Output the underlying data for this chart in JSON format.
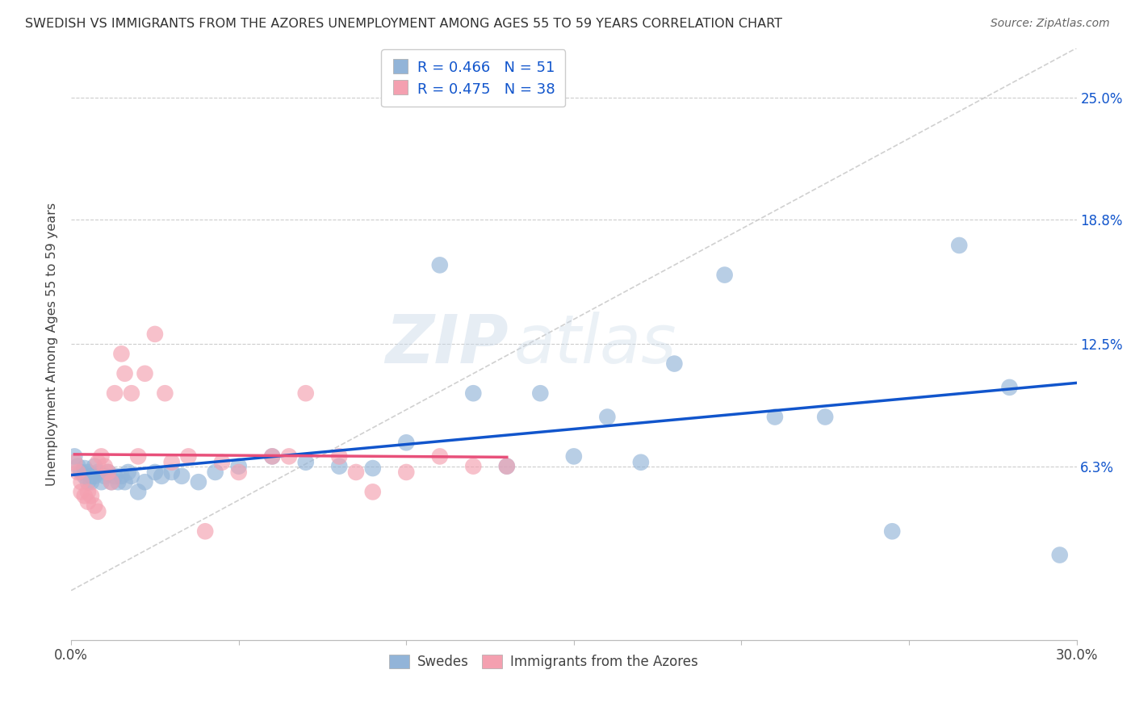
{
  "title": "SWEDISH VS IMMIGRANTS FROM THE AZORES UNEMPLOYMENT AMONG AGES 55 TO 59 YEARS CORRELATION CHART",
  "source": "Source: ZipAtlas.com",
  "ylabel": "Unemployment Among Ages 55 to 59 years",
  "watermark_zip": "ZIP",
  "watermark_atlas": "atlas",
  "xlim": [
    0.0,
    0.3
  ],
  "ylim": [
    -0.025,
    0.275
  ],
  "ytick_positions": [
    0.063,
    0.125,
    0.188,
    0.25
  ],
  "ytick_labels": [
    "6.3%",
    "12.5%",
    "18.8%",
    "25.0%"
  ],
  "swedes_color": "#92B4D8",
  "azores_color": "#F4A0B0",
  "regression_blue": "#1155CC",
  "regression_pink": "#E8507A",
  "diagonal_color": "#C8C8C8",
  "legend_R_blue": "0.466",
  "legend_N_blue": "51",
  "legend_R_pink": "0.475",
  "legend_N_pink": "38",
  "swedes_label": "Swedes",
  "azores_label": "Immigrants from the Azores",
  "swedes_x": [
    0.001,
    0.002,
    0.003,
    0.004,
    0.004,
    0.005,
    0.005,
    0.006,
    0.006,
    0.007,
    0.007,
    0.008,
    0.009,
    0.01,
    0.011,
    0.012,
    0.013,
    0.014,
    0.015,
    0.016,
    0.017,
    0.018,
    0.02,
    0.022,
    0.025,
    0.027,
    0.03,
    0.033,
    0.038,
    0.043,
    0.05,
    0.06,
    0.07,
    0.08,
    0.09,
    0.1,
    0.11,
    0.12,
    0.13,
    0.14,
    0.15,
    0.16,
    0.17,
    0.18,
    0.195,
    0.21,
    0.225,
    0.245,
    0.265,
    0.28,
    0.295
  ],
  "swedes_y": [
    0.068,
    0.063,
    0.06,
    0.058,
    0.062,
    0.055,
    0.06,
    0.058,
    0.055,
    0.063,
    0.058,
    0.06,
    0.055,
    0.058,
    0.06,
    0.055,
    0.058,
    0.055,
    0.058,
    0.055,
    0.06,
    0.058,
    0.05,
    0.055,
    0.06,
    0.058,
    0.06,
    0.058,
    0.055,
    0.06,
    0.063,
    0.068,
    0.065,
    0.063,
    0.062,
    0.075,
    0.165,
    0.1,
    0.063,
    0.1,
    0.068,
    0.088,
    0.065,
    0.115,
    0.16,
    0.088,
    0.088,
    0.03,
    0.175,
    0.103,
    0.018
  ],
  "azores_x": [
    0.001,
    0.002,
    0.003,
    0.003,
    0.004,
    0.005,
    0.005,
    0.006,
    0.007,
    0.008,
    0.008,
    0.009,
    0.01,
    0.011,
    0.012,
    0.013,
    0.015,
    0.016,
    0.018,
    0.02,
    0.022,
    0.025,
    0.028,
    0.03,
    0.035,
    0.04,
    0.045,
    0.05,
    0.06,
    0.065,
    0.07,
    0.08,
    0.085,
    0.09,
    0.1,
    0.11,
    0.12,
    0.13
  ],
  "azores_y": [
    0.065,
    0.06,
    0.055,
    0.05,
    0.048,
    0.045,
    0.05,
    0.048,
    0.043,
    0.04,
    0.065,
    0.068,
    0.063,
    0.06,
    0.055,
    0.1,
    0.12,
    0.11,
    0.1,
    0.068,
    0.11,
    0.13,
    0.1,
    0.065,
    0.068,
    0.03,
    0.065,
    0.06,
    0.068,
    0.068,
    0.1,
    0.068,
    0.06,
    0.05,
    0.06,
    0.068,
    0.063,
    0.063
  ]
}
